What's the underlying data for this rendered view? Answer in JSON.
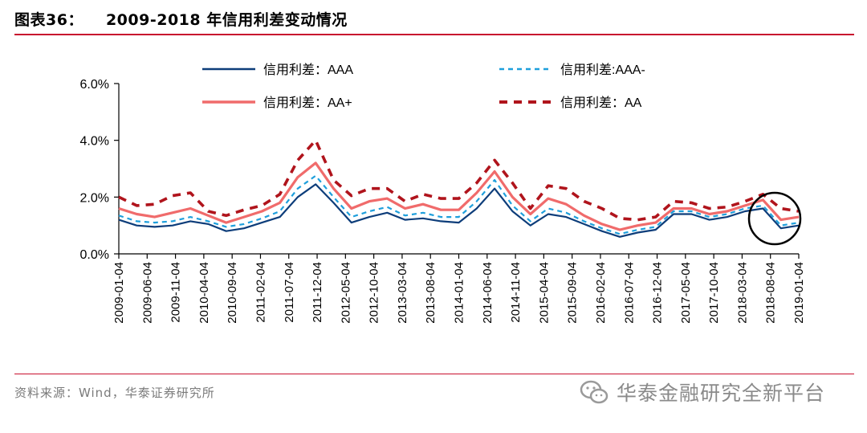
{
  "header": {
    "figure_no": "图表36：",
    "title": "2009-2018 年信用利差变动情况"
  },
  "footer": {
    "source": "资料来源：Wind，华泰证券研究所",
    "watermark_text": "华泰金融研究全新平台"
  },
  "colors": {
    "accent_rule": "#c8102e",
    "AAA": "#0d3d7a",
    "AAA-": "#1e9fdc",
    "AA+": "#f06b6b",
    "AA": "#b0141c",
    "highlight_circle": "#000000"
  },
  "chart_data": {
    "type": "line",
    "ylim": [
      0,
      6
    ],
    "yticks": [
      "0.0%",
      "2.0%",
      "4.0%",
      "6.0%"
    ],
    "ytick_values": [
      0,
      2,
      4,
      6
    ],
    "x_tick_labels": [
      "2009-01-04",
      "2009-06-04",
      "2009-11-04",
      "2010-04-04",
      "2010-09-04",
      "2011-02-04",
      "2011-07-04",
      "2011-12-04",
      "2012-05-04",
      "2012-10-04",
      "2013-03-04",
      "2013-08-04",
      "2014-01-04",
      "2014-06-04",
      "2014-11-04",
      "2015-04-04",
      "2015-09-04",
      "2016-02-04",
      "2016-07-04",
      "2016-12-04",
      "2017-05-04",
      "2017-10-04",
      "2018-03-04",
      "2018-08-04",
      "2019-01-04"
    ],
    "legend_position": "top",
    "grid": false,
    "annotation": "circle around 2018-08 to 2019-01",
    "series": [
      {
        "name": "信用利差：AAA",
        "style": "solid-thin",
        "values": [
          1.2,
          1.0,
          0.95,
          1.0,
          1.15,
          1.05,
          0.8,
          0.9,
          1.1,
          1.3,
          2.0,
          2.45,
          1.8,
          1.1,
          1.3,
          1.45,
          1.2,
          1.25,
          1.15,
          1.1,
          1.6,
          2.3,
          1.5,
          1.0,
          1.4,
          1.3,
          1.05,
          0.8,
          0.6,
          0.75,
          0.85,
          1.4,
          1.4,
          1.2,
          1.3,
          1.5,
          1.6,
          0.9,
          1.0
        ]
      },
      {
        "name": "信用利差:AAA-",
        "style": "dashed-thin",
        "values": [
          1.35,
          1.15,
          1.1,
          1.15,
          1.3,
          1.15,
          0.95,
          1.05,
          1.25,
          1.5,
          2.3,
          2.75,
          2.0,
          1.3,
          1.5,
          1.65,
          1.35,
          1.45,
          1.3,
          1.3,
          1.85,
          2.6,
          1.7,
          1.15,
          1.6,
          1.45,
          1.15,
          0.9,
          0.7,
          0.85,
          0.95,
          1.5,
          1.5,
          1.3,
          1.4,
          1.6,
          1.7,
          1.0,
          1.1
        ]
      },
      {
        "name": "信用利差：AA+",
        "style": "solid-thick",
        "values": [
          1.6,
          1.4,
          1.3,
          1.45,
          1.6,
          1.35,
          1.1,
          1.3,
          1.5,
          1.8,
          2.7,
          3.2,
          2.3,
          1.6,
          1.85,
          1.95,
          1.6,
          1.75,
          1.55,
          1.55,
          2.15,
          2.9,
          2.0,
          1.4,
          1.95,
          1.75,
          1.35,
          1.05,
          0.85,
          1.0,
          1.1,
          1.6,
          1.6,
          1.4,
          1.5,
          1.7,
          1.9,
          1.2,
          1.3
        ]
      },
      {
        "name": "信用利差：AA",
        "style": "dashed-thick",
        "values": [
          2.0,
          1.7,
          1.75,
          2.05,
          2.15,
          1.5,
          1.35,
          1.55,
          1.7,
          2.1,
          3.3,
          4.0,
          2.6,
          2.05,
          2.3,
          2.3,
          1.85,
          2.1,
          1.95,
          1.95,
          2.5,
          3.3,
          2.5,
          1.6,
          2.4,
          2.3,
          1.85,
          1.6,
          1.25,
          1.2,
          1.3,
          1.85,
          1.8,
          1.6,
          1.65,
          1.85,
          2.1,
          1.6,
          1.5
        ]
      }
    ]
  }
}
